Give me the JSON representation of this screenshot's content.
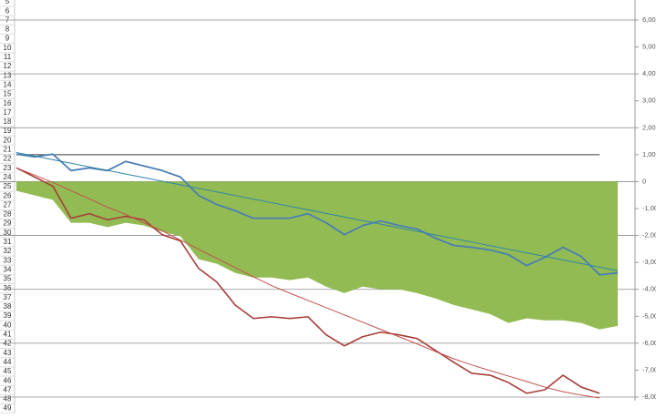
{
  "row_headers": [
    "5",
    "6",
    "7",
    "8",
    "9",
    "10",
    "11",
    "12",
    "13",
    "14",
    "15",
    "16",
    "17",
    "18",
    "19",
    "20",
    "21",
    "22",
    "23",
    "24",
    "25",
    "26",
    "27",
    "28",
    "29",
    "30",
    "31",
    "32",
    "33",
    "34",
    "35",
    "36",
    "37",
    "38",
    "39",
    "40",
    "41",
    "42",
    "43",
    "44",
    "45",
    "46",
    "47",
    "48",
    "49"
  ],
  "chart_data": {
    "type": "line",
    "categories": [
      null,
      null,
      null,
      null,
      null,
      null,
      null,
      null,
      null,
      null,
      null,
      null,
      null,
      null,
      null,
      null,
      null,
      null,
      null,
      null,
      null,
      null,
      null,
      null,
      null,
      null,
      null,
      null,
      null,
      null,
      null,
      null,
      null,
      null
    ],
    "ylim": [
      -8000,
      6000
    ],
    "yticks": [
      {
        "value": 6000,
        "label": "6,000"
      },
      {
        "value": 5000,
        "label": "5,000"
      },
      {
        "value": 4000,
        "label": "4,000"
      },
      {
        "value": 3000,
        "label": "3,000"
      },
      {
        "value": 2000,
        "label": "2,000"
      },
      {
        "value": 1000,
        "label": "1,000"
      },
      0,
      {
        "value": -1000,
        "label": "-1,000"
      },
      {
        "value": -2000,
        "label": "-2,000"
      },
      {
        "value": -3000,
        "label": "-3,000"
      },
      {
        "value": -4000,
        "label": "-4,000"
      },
      {
        "value": -5000,
        "label": "-5,000"
      },
      {
        "value": -6000,
        "label": "-6,000"
      },
      {
        "value": -7000,
        "label": "-7,000"
      },
      {
        "value": -8000,
        "label": "-8,000"
      }
    ],
    "gridlines": [
      6000,
      4000,
      2000,
      0,
      -2000,
      -4000,
      -6000,
      -8000
    ],
    "series": [
      {
        "type": "area",
        "color": "#93bb53",
        "values": [
          -340,
          -510,
          -680,
          -1530,
          -1530,
          -1690,
          -1530,
          -1630,
          -1860,
          -2030,
          -2880,
          -3050,
          -3390,
          -3560,
          -3560,
          -3660,
          -3560,
          -3900,
          -4140,
          -3900,
          -4000,
          -4000,
          -4140,
          -4340,
          -4580,
          -4750,
          -4920,
          -5250,
          -5080,
          -5150,
          -5150,
          -5250,
          -5490,
          -5360
        ]
      },
      {
        "type": "line",
        "color": "#3a3a3a",
        "width": 1,
        "values": [
          1000,
          1000,
          1000,
          1000,
          1000,
          1000,
          1000,
          1000,
          1000,
          1000,
          1000,
          1000,
          1000,
          1000,
          1000,
          1000,
          1000,
          1000,
          1000,
          1000,
          1000,
          1000,
          1000,
          1000,
          1000,
          1000,
          1000,
          1000,
          1000,
          1000,
          1000,
          1000,
          1000,
          null
        ]
      },
      {
        "type": "line",
        "color": "#a83e3a",
        "width": 1.6,
        "values": [
          510,
          170,
          -170,
          -1360,
          -1190,
          -1420,
          -1290,
          -1420,
          -1970,
          -2200,
          -3220,
          -3730,
          -4580,
          -5080,
          -5020,
          -5080,
          -5020,
          -5690,
          -6100,
          -5760,
          -5590,
          -5690,
          -5830,
          -6270,
          -6710,
          -7120,
          -7190,
          -7460,
          -7860,
          -7730,
          -7190,
          -7630,
          -7860,
          null
        ]
      },
      {
        "type": "line",
        "color": "#c0504d",
        "width": 1,
        "values": [
          510,
          240,
          -30,
          -340,
          -640,
          -950,
          -1220,
          -1530,
          -1830,
          -2170,
          -2510,
          -2850,
          -3190,
          -3530,
          -3860,
          -4140,
          -4410,
          -4680,
          -4950,
          -5220,
          -5490,
          -5760,
          -6030,
          -6310,
          -6580,
          -6810,
          -7020,
          -7220,
          -7420,
          -7630,
          -7800,
          -7930,
          -8030,
          null
        ]
      },
      {
        "type": "line",
        "color": "#4a7eb5",
        "width": 1.8,
        "values": [
          1020,
          920,
          1020,
          410,
          510,
          410,
          750,
          580,
          410,
          170,
          -510,
          -850,
          -1080,
          -1360,
          -1360,
          -1360,
          -1190,
          -1530,
          -1970,
          -1630,
          -1460,
          -1630,
          -1760,
          -2100,
          -2370,
          -2440,
          -2540,
          -2710,
          -3120,
          -2810,
          -2440,
          -2780,
          -3460,
          -3390
        ]
      },
      {
        "type": "line",
        "color": "#2f85a8",
        "width": 1,
        "values": [
          1080,
          947,
          814,
          681,
          548,
          415,
          282,
          149,
          16,
          -117,
          -250,
          -383,
          -516,
          -649,
          -782,
          -915,
          -1048,
          -1181,
          -1314,
          -1447,
          -1580,
          -1713,
          -1846,
          -1979,
          -2112,
          -2245,
          -2378,
          -2511,
          -2644,
          -2777,
          -2910,
          -3043,
          -3176,
          -3309
        ]
      }
    ]
  }
}
